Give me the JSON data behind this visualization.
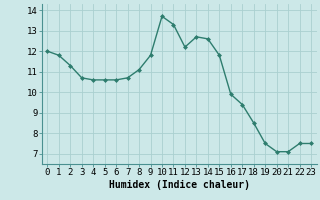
{
  "x": [
    0,
    1,
    2,
    3,
    4,
    5,
    6,
    7,
    8,
    9,
    10,
    11,
    12,
    13,
    14,
    15,
    16,
    17,
    18,
    19,
    20,
    21,
    22,
    23
  ],
  "y": [
    12.0,
    11.8,
    11.3,
    10.7,
    10.6,
    10.6,
    10.6,
    10.7,
    11.1,
    11.8,
    13.7,
    13.3,
    12.2,
    12.7,
    12.6,
    11.8,
    9.9,
    9.4,
    8.5,
    7.5,
    7.1,
    7.1,
    7.5,
    7.5
  ],
  "line_color": "#2e7d6e",
  "marker": "D",
  "marker_size": 2.0,
  "line_width": 1.0,
  "bg_color": "#cce8e8",
  "grid_color": "#aad0d0",
  "xlabel": "Humidex (Indice chaleur)",
  "xlim": [
    -0.5,
    23.5
  ],
  "ylim": [
    6.5,
    14.3
  ],
  "yticks": [
    7,
    8,
    9,
    10,
    11,
    12,
    13,
    14
  ],
  "xtick_labels": [
    "0",
    "1",
    "2",
    "3",
    "4",
    "5",
    "6",
    "7",
    "8",
    "9",
    "10",
    "11",
    "12",
    "13",
    "14",
    "15",
    "16",
    "17",
    "18",
    "19",
    "20",
    "21",
    "22",
    "23"
  ],
  "xlabel_fontsize": 7,
  "tick_fontsize": 6.5
}
